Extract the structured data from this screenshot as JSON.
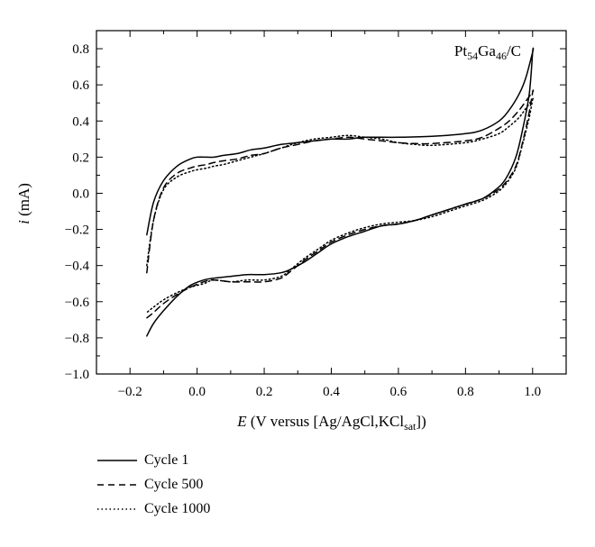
{
  "chart_data": {
    "type": "line",
    "annotation": {
      "pre": "Pt",
      "sub1": "54",
      "mid": "Ga",
      "sub2": "46",
      "post": "/C"
    },
    "xlabel": {
      "italic": "E",
      "pre": " (V versus [Ag/AgCl,KCl",
      "sub": "sat",
      "post": "])"
    },
    "ylabel": {
      "italic": "i",
      "rest": " (mA)"
    },
    "xlim": [
      -0.3,
      1.1
    ],
    "ylim": [
      -1.0,
      0.9
    ],
    "xticks": [
      -0.2,
      0.0,
      0.2,
      0.4,
      0.6,
      0.8,
      1.0
    ],
    "yticks": [
      -1.0,
      -0.8,
      -0.6,
      -0.4,
      -0.2,
      0.0,
      0.2,
      0.4,
      0.6,
      0.8
    ],
    "xtick_labels": [
      "−0.2",
      "0.0",
      "0.2",
      "0.4",
      "0.6",
      "0.8",
      "1.0"
    ],
    "ytick_labels": [
      "−1.0",
      "−0.8",
      "−0.6",
      "−0.4",
      "−0.2",
      "0.0",
      "0.2",
      "0.4",
      "0.6",
      "0.8"
    ],
    "grid": false,
    "legend_position": "below",
    "series": [
      {
        "name": "Cycle 1",
        "line_style": "solid",
        "x": [
          -0.15,
          -0.13,
          -0.1,
          -0.06,
          -0.02,
          0.0,
          0.03,
          0.05,
          0.08,
          0.12,
          0.16,
          0.2,
          0.25,
          0.3,
          0.35,
          0.4,
          0.45,
          0.5,
          0.6,
          0.7,
          0.8,
          0.85,
          0.9,
          0.93,
          0.96,
          0.98,
          1.0,
          1.0,
          0.99,
          0.97,
          0.95,
          0.92,
          0.89,
          0.85,
          0.8,
          0.75,
          0.7,
          0.65,
          0.6,
          0.55,
          0.5,
          0.45,
          0.4,
          0.36,
          0.32,
          0.28,
          0.25,
          0.2,
          0.15,
          0.1,
          0.05,
          0.02,
          -0.02,
          -0.06,
          -0.1,
          -0.13,
          -0.15
        ],
        "y": [
          -0.23,
          -0.05,
          0.07,
          0.15,
          0.19,
          0.2,
          0.2,
          0.2,
          0.21,
          0.22,
          0.24,
          0.25,
          0.27,
          0.28,
          0.29,
          0.3,
          0.3,
          0.31,
          0.31,
          0.315,
          0.33,
          0.35,
          0.4,
          0.46,
          0.55,
          0.64,
          0.78,
          0.78,
          0.55,
          0.35,
          0.2,
          0.08,
          0.02,
          -0.03,
          -0.06,
          -0.09,
          -0.12,
          -0.15,
          -0.17,
          -0.18,
          -0.21,
          -0.24,
          -0.28,
          -0.33,
          -0.38,
          -0.42,
          -0.44,
          -0.45,
          -0.45,
          -0.46,
          -0.47,
          -0.48,
          -0.51,
          -0.57,
          -0.65,
          -0.72,
          -0.79
        ]
      },
      {
        "name": "Cycle 500",
        "line_style": "dashed",
        "x": [
          -0.15,
          -0.13,
          -0.1,
          -0.06,
          -0.02,
          0.0,
          0.03,
          0.05,
          0.08,
          0.12,
          0.16,
          0.2,
          0.25,
          0.3,
          0.35,
          0.4,
          0.45,
          0.5,
          0.55,
          0.6,
          0.65,
          0.7,
          0.8,
          0.85,
          0.9,
          0.93,
          0.96,
          0.98,
          1.0,
          1.0,
          0.99,
          0.97,
          0.95,
          0.92,
          0.89,
          0.85,
          0.8,
          0.75,
          0.7,
          0.65,
          0.6,
          0.55,
          0.5,
          0.45,
          0.4,
          0.36,
          0.32,
          0.28,
          0.25,
          0.2,
          0.15,
          0.1,
          0.05,
          0.02,
          -0.02,
          -0.06,
          -0.1,
          -0.13,
          -0.15
        ],
        "y": [
          -0.44,
          -0.15,
          0.03,
          0.11,
          0.14,
          0.15,
          0.16,
          0.17,
          0.18,
          0.19,
          0.21,
          0.22,
          0.25,
          0.27,
          0.29,
          0.3,
          0.31,
          0.3,
          0.29,
          0.28,
          0.275,
          0.275,
          0.29,
          0.31,
          0.36,
          0.4,
          0.46,
          0.51,
          0.56,
          0.56,
          0.45,
          0.28,
          0.15,
          0.06,
          0.01,
          -0.03,
          -0.06,
          -0.09,
          -0.12,
          -0.15,
          -0.17,
          -0.18,
          -0.2,
          -0.23,
          -0.27,
          -0.32,
          -0.37,
          -0.43,
          -0.47,
          -0.49,
          -0.49,
          -0.49,
          -0.48,
          -0.49,
          -0.52,
          -0.56,
          -0.61,
          -0.66,
          -0.69
        ]
      },
      {
        "name": "Cycle 1000",
        "line_style": "dotted",
        "x": [
          -0.15,
          -0.13,
          -0.1,
          -0.06,
          -0.02,
          0.0,
          0.03,
          0.05,
          0.08,
          0.12,
          0.16,
          0.2,
          0.25,
          0.3,
          0.35,
          0.4,
          0.45,
          0.5,
          0.55,
          0.6,
          0.65,
          0.7,
          0.8,
          0.85,
          0.9,
          0.93,
          0.96,
          0.98,
          1.0,
          1.0,
          0.99,
          0.97,
          0.95,
          0.92,
          0.89,
          0.85,
          0.8,
          0.75,
          0.7,
          0.65,
          0.6,
          0.55,
          0.5,
          0.45,
          0.4,
          0.36,
          0.32,
          0.28,
          0.25,
          0.2,
          0.15,
          0.1,
          0.05,
          0.02,
          -0.02,
          -0.06,
          -0.1,
          -0.13,
          -0.15
        ],
        "y": [
          -0.4,
          -0.15,
          0.02,
          0.09,
          0.12,
          0.13,
          0.14,
          0.15,
          0.16,
          0.18,
          0.2,
          0.22,
          0.25,
          0.28,
          0.3,
          0.31,
          0.32,
          0.31,
          0.3,
          0.28,
          0.27,
          0.265,
          0.28,
          0.3,
          0.33,
          0.37,
          0.42,
          0.47,
          0.52,
          0.52,
          0.42,
          0.27,
          0.14,
          0.05,
          0.0,
          -0.04,
          -0.07,
          -0.1,
          -0.13,
          -0.15,
          -0.16,
          -0.17,
          -0.19,
          -0.22,
          -0.26,
          -0.31,
          -0.36,
          -0.42,
          -0.46,
          -0.48,
          -0.48,
          -0.49,
          -0.48,
          -0.5,
          -0.52,
          -0.55,
          -0.59,
          -0.63,
          -0.66
        ]
      }
    ]
  }
}
